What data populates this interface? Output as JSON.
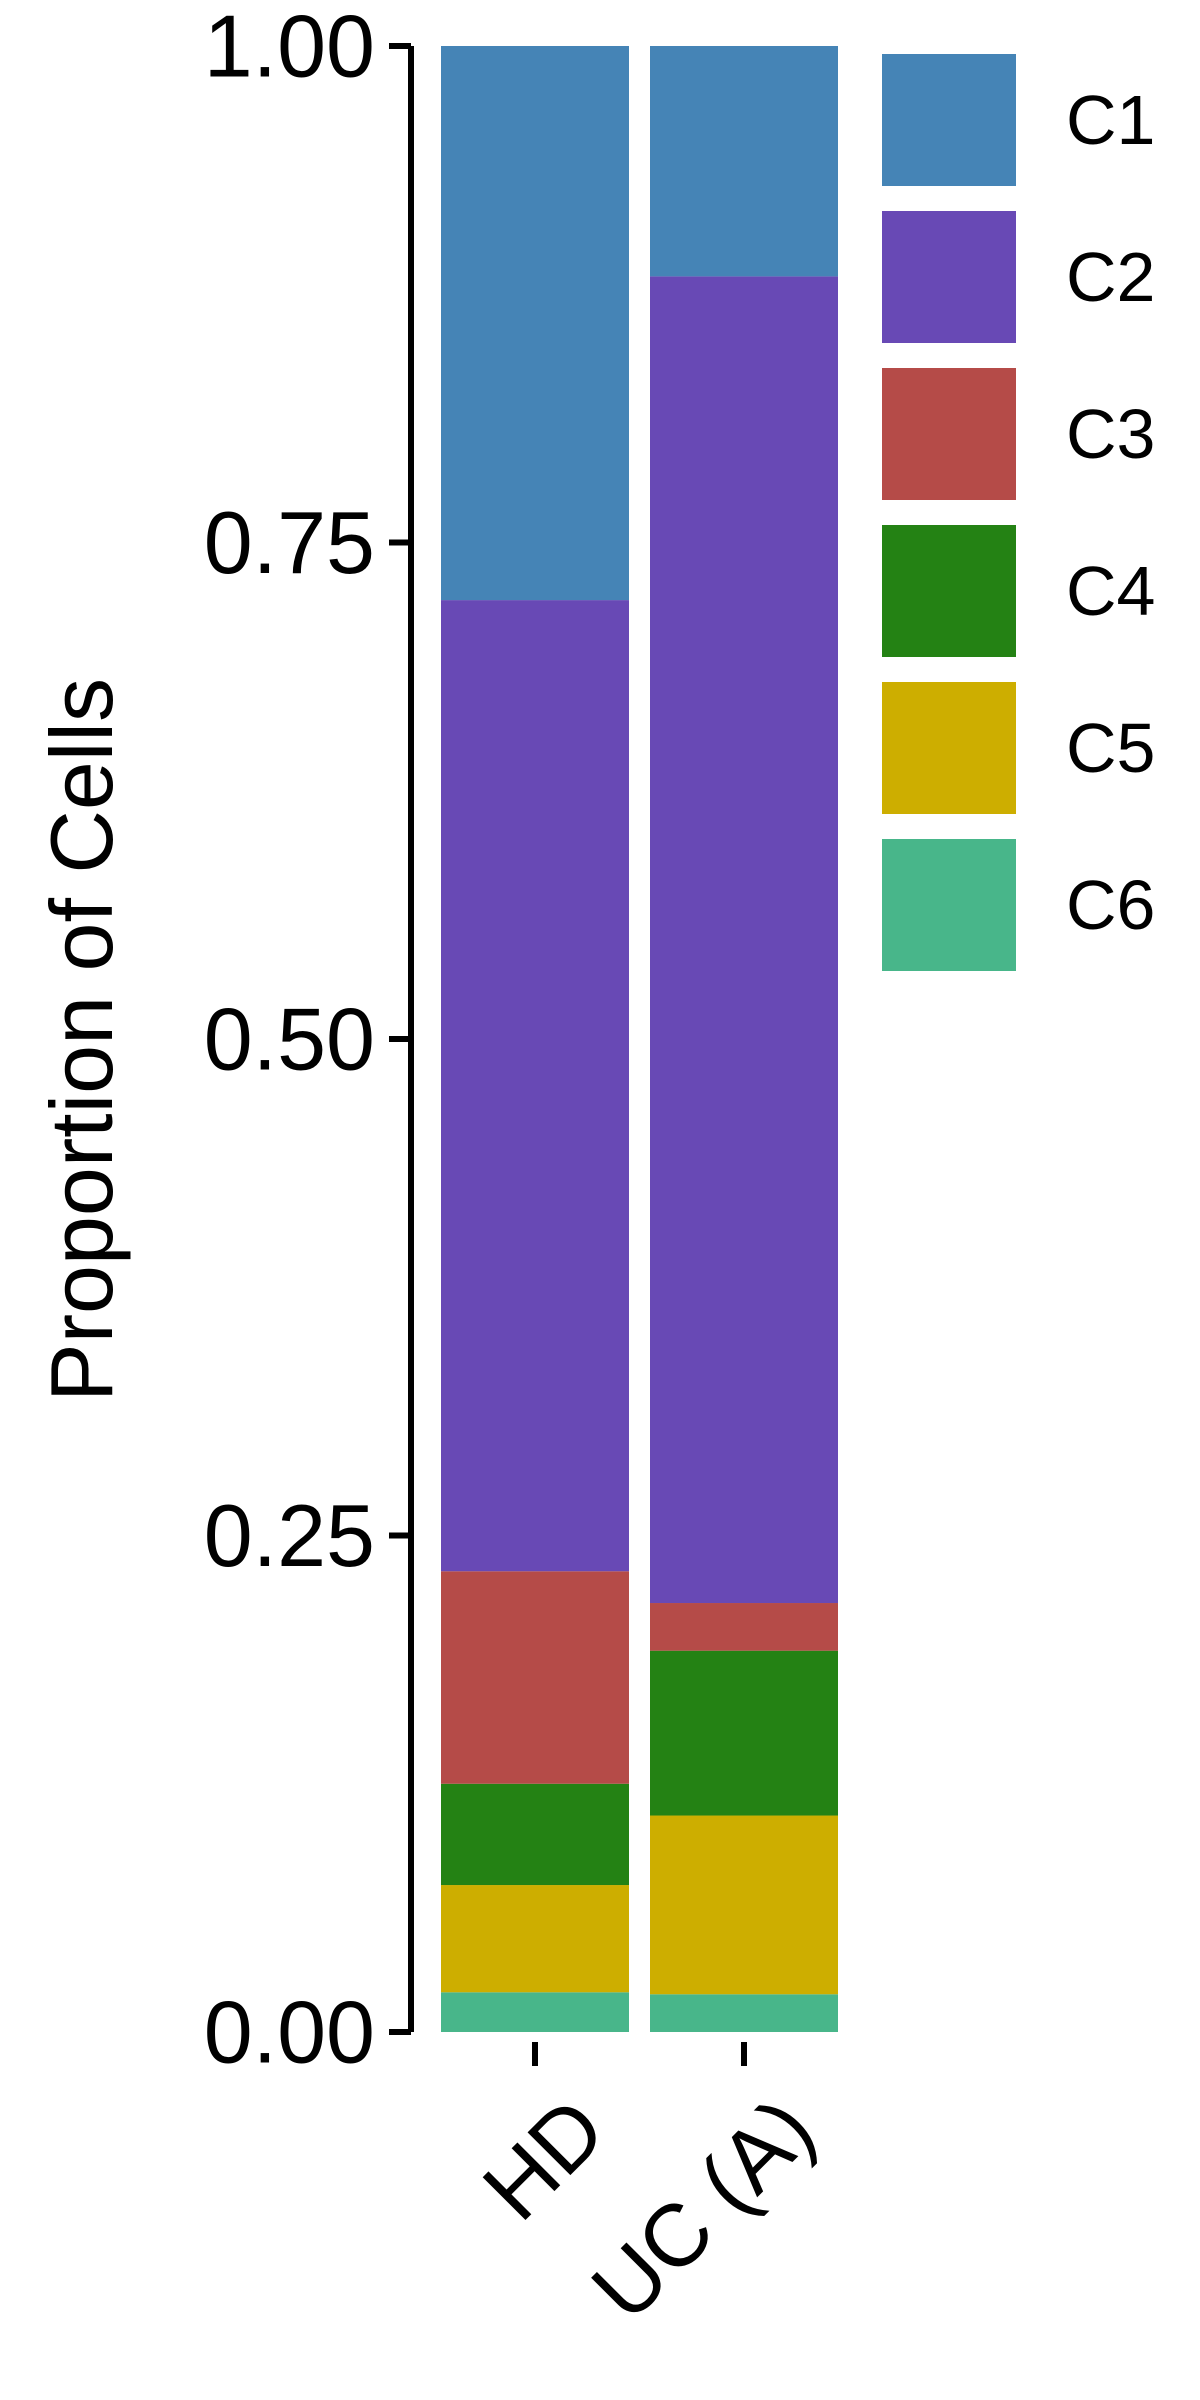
{
  "chart_data": {
    "type": "bar",
    "stacked": true,
    "title": "",
    "xlabel": "",
    "ylabel": "Proportion of Cells",
    "ylim": [
      0,
      1
    ],
    "yticks": [
      "0.00",
      "0.25",
      "0.50",
      "0.75",
      "1.00"
    ],
    "categories": [
      "HD",
      "UC (A)"
    ],
    "series": [
      {
        "name": "C6",
        "color": "#48B68A",
        "values": [
          0.02,
          0.019
        ]
      },
      {
        "name": "C5",
        "color": "#CDAE00",
        "values": [
          0.054,
          0.09
        ]
      },
      {
        "name": "C4",
        "color": "#248214",
        "values": [
          0.051,
          0.083
        ]
      },
      {
        "name": "C3",
        "color": "#B54B48",
        "values": [
          0.107,
          0.024
        ]
      },
      {
        "name": "C2",
        "color": "#6849B5",
        "values": [
          0.489,
          0.668
        ]
      },
      {
        "name": "C1",
        "color": "#4584B6",
        "values": [
          0.279,
          0.116
        ]
      }
    ],
    "legend": {
      "position": "right",
      "order": [
        "C1",
        "C2",
        "C3",
        "C4",
        "C5",
        "C6"
      ]
    },
    "grid": false
  }
}
